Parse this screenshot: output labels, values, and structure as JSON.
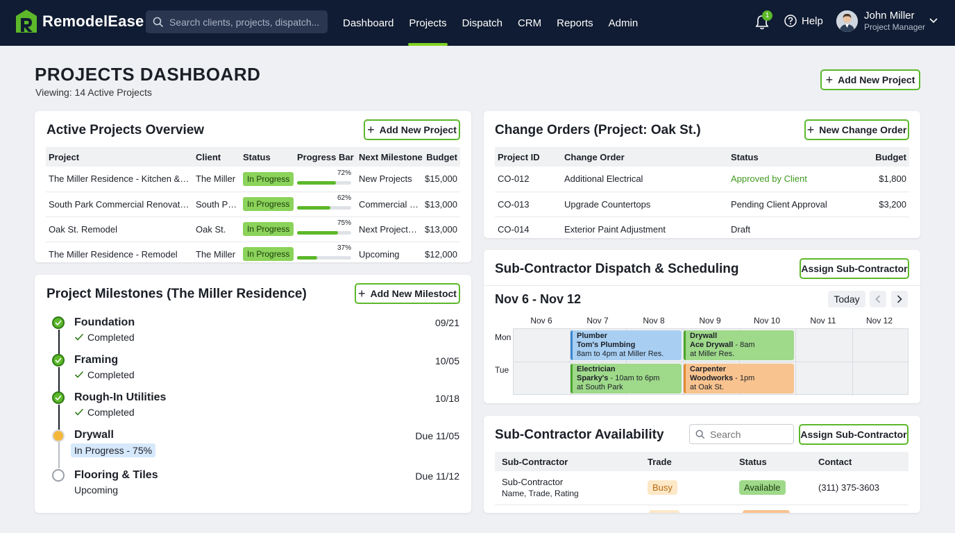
{
  "app": {
    "name": "RemodelEase"
  },
  "search": {
    "placeholder": "Search clients, projects, dispatch..."
  },
  "nav": {
    "items": [
      "Dashboard",
      "Projects",
      "Dispatch",
      "CRM",
      "Reports",
      "Admin"
    ],
    "active": "Projects"
  },
  "notifications": {
    "count": "1"
  },
  "help": {
    "label": "Help"
  },
  "user": {
    "name": "John Miller",
    "role": "Project Manager"
  },
  "page": {
    "title": "PROJECTS DASHBOARD",
    "subtitle": "Viewing: 14 Active Projects",
    "add_button": "Add New Project"
  },
  "active_projects": {
    "title": "Active Projects Overview",
    "add_button": "Add New Project",
    "columns": [
      "Project",
      "Client",
      "Status",
      "Progress Bar",
      "Next Milestone",
      "Budget"
    ],
    "rows": [
      {
        "project": "The Miller Residence - Kitchen & Bath",
        "client": "The Miller",
        "status": "In Progress",
        "progress": 72,
        "progress_label": "72%",
        "milestone": "New Projects",
        "budget": "$15,000"
      },
      {
        "project": "South Park Commercial Renovation",
        "client": "South Park",
        "status": "In Progress",
        "progress": 62,
        "progress_label": "62%",
        "milestone": "Commercial r...",
        "budget": "$13,000"
      },
      {
        "project": "Oak St. Remodel",
        "client": "Oak St.",
        "status": "In Progress",
        "progress": 75,
        "progress_label": "75%",
        "milestone": "Next Projects...",
        "budget": "$13,000"
      },
      {
        "project": "The Miller Residence - Remodel",
        "client": "The Miller",
        "status": "In Progress",
        "progress": 37,
        "progress_label": "37%",
        "milestone": "Upcoming",
        "budget": "$12,000"
      }
    ]
  },
  "milestones": {
    "title": "Project Milestones (The Miller Residence)",
    "add_button": "Add New Milestoct",
    "items": [
      {
        "name": "Foundation",
        "status": "Completed",
        "date": "09/21",
        "state": "done"
      },
      {
        "name": "Framing",
        "status": "Completed",
        "date": "10/05",
        "state": "done"
      },
      {
        "name": "Rough-In Utilities",
        "status": "Completed",
        "date": "10/18",
        "state": "done"
      },
      {
        "name": "Drywall",
        "status": "In Progress - 75%",
        "date": "Due 11/05",
        "state": "progress"
      },
      {
        "name": "Flooring & Tiles",
        "status": "Upcoming",
        "date": "Due 11/12",
        "state": "upcoming"
      }
    ]
  },
  "change_orders": {
    "title": "Change Orders (Project: Oak St.)",
    "add_button": "New Change Order",
    "columns": [
      "Project ID",
      "Change Order",
      "Status",
      "Budget"
    ],
    "rows": [
      {
        "id": "CO-012",
        "order": "Additional Electrical",
        "status": "Approved by Client",
        "budget": "$1,800",
        "approved": true
      },
      {
        "id": "CO-013",
        "order": "Upgrade Countertops",
        "status": "Pending Client Approval",
        "budget": "$3,200",
        "approved": false
      },
      {
        "id": "CO-014",
        "order": "Exterior Paint Adjustment",
        "status": "Draft",
        "budget": "",
        "approved": false
      }
    ]
  },
  "dispatch": {
    "title": "Sub-Contractor Dispatch & Scheduling",
    "assign_button": "Assign Sub-Contractor",
    "range": "Nov 6 - Nov 12",
    "today_button": "Today",
    "days": [
      "Nov 6",
      "Nov 7",
      "Nov 8",
      "Nov 9",
      "Nov 10",
      "Nov 11",
      "Nov 12"
    ],
    "row_labels": [
      "Mon",
      "Tue"
    ],
    "events": [
      {
        "trade": "Plumber",
        "who": "Tom's Plumbing",
        "when": "8am to 4pm at Miller Res.",
        "color": "blue"
      },
      {
        "trade": "Drywall",
        "who": "Ace Drywall",
        "when": " - 8am",
        "where": "at Miller Res.",
        "color": "green"
      },
      {
        "trade": "Electrician",
        "who": "Sparky's",
        "when": " - 10am to 6pm",
        "where": "at South Park",
        "color": "green"
      },
      {
        "trade": "Carpenter",
        "who": "Woodworks",
        "when": " - 1pm",
        "where": "at Oak St.",
        "color": "orange"
      }
    ]
  },
  "availability": {
    "title": "Sub-Contractor Availability",
    "search_placeholder": "Search",
    "assign_button": "Assign Sub-Contractor",
    "columns": [
      "Sub-Contractor",
      "Trade",
      "Status",
      "Contact"
    ],
    "rows": [
      {
        "name": "Sub-Contractor",
        "detail": "Name, Trade, Rating",
        "trade": "Busy",
        "status": "Available",
        "contact": "(311) 375-3603"
      }
    ]
  },
  "colors": {
    "accent": "#5cb82a",
    "nav_bg": "#101c33",
    "approved_text": "#3f9a1f"
  }
}
